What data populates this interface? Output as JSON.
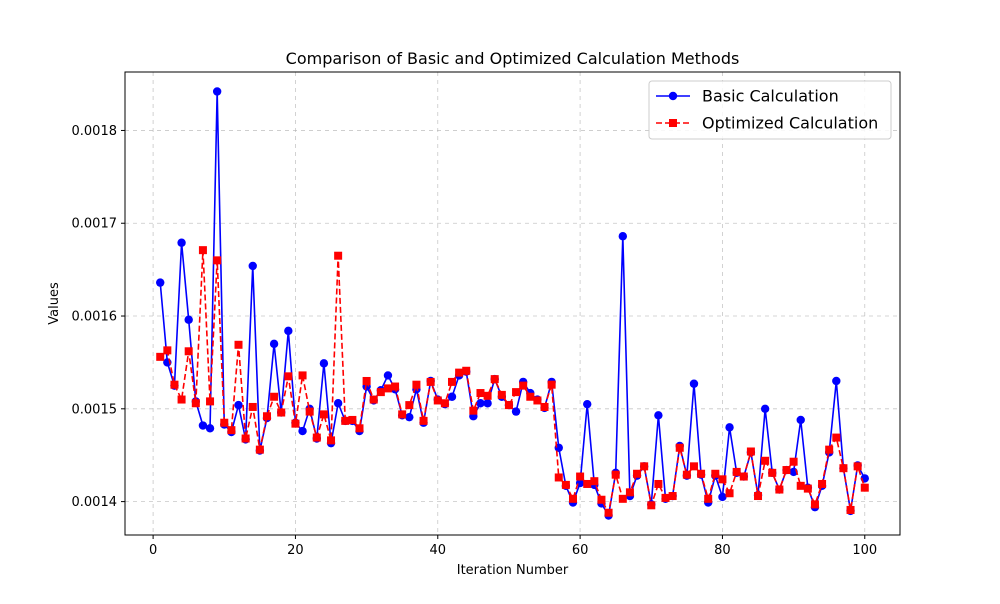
{
  "chart_data": {
    "type": "line",
    "title": "Comparison of Basic and Optimized Calculation Methods",
    "xlabel": "Iteration Number",
    "ylabel": "Values",
    "xlim": [
      -3.95,
      104.95
    ],
    "ylim": [
      0.001364,
      0.001863
    ],
    "xticks": [
      0,
      20,
      40,
      60,
      80,
      100
    ],
    "yticks": [
      0.0014,
      0.0015,
      0.0016,
      0.0017,
      0.0018
    ],
    "xtick_labels": [
      "0",
      "20",
      "40",
      "60",
      "80",
      "100"
    ],
    "ytick_labels": [
      "0.0014",
      "0.0015",
      "0.0016",
      "0.0017",
      "0.0018"
    ],
    "grid": true,
    "legend_position": "top-right",
    "x": [
      1,
      2,
      3,
      4,
      5,
      6,
      7,
      8,
      9,
      10,
      11,
      12,
      13,
      14,
      15,
      16,
      17,
      18,
      19,
      20,
      21,
      22,
      23,
      24,
      25,
      26,
      27,
      28,
      29,
      30,
      31,
      32,
      33,
      34,
      35,
      36,
      37,
      38,
      39,
      40,
      41,
      42,
      43,
      44,
      45,
      46,
      47,
      48,
      49,
      50,
      51,
      52,
      53,
      54,
      55,
      56,
      57,
      58,
      59,
      60,
      61,
      62,
      63,
      64,
      65,
      66,
      67,
      68,
      69,
      70,
      71,
      72,
      73,
      74,
      75,
      76,
      77,
      78,
      79,
      80,
      81,
      82,
      83,
      84,
      85,
      86,
      87,
      88,
      89,
      90,
      91,
      92,
      93,
      94,
      95,
      96,
      97,
      98,
      99,
      100
    ],
    "series": [
      {
        "name": "Basic Calculation",
        "color": "#0000ff",
        "linestyle": "solid",
        "marker": "circle",
        "values": [
          0.001636,
          0.00155,
          0.001525,
          0.001679,
          0.001596,
          0.001508,
          0.001482,
          0.001479,
          0.001842,
          0.001483,
          0.001475,
          0.001504,
          0.001467,
          0.001654,
          0.001455,
          0.00149,
          0.00157,
          0.001496,
          0.001584,
          0.001485,
          0.001476,
          0.0015,
          0.001468,
          0.001549,
          0.001463,
          0.001506,
          0.001487,
          0.001487,
          0.001476,
          0.001524,
          0.001509,
          0.00152,
          0.001536,
          0.001521,
          0.001493,
          0.001491,
          0.001521,
          0.001485,
          0.00153,
          0.00151,
          0.001505,
          0.001513,
          0.001536,
          0.00154,
          0.001492,
          0.001506,
          0.001506,
          0.001532,
          0.001513,
          0.001504,
          0.001497,
          0.001529,
          0.001517,
          0.00151,
          0.001501,
          0.001529,
          0.001458,
          0.001417,
          0.001399,
          0.00142,
          0.001505,
          0.001418,
          0.001398,
          0.001385,
          0.001431,
          0.001686,
          0.001406,
          0.001428,
          0.001438,
          0.001397,
          0.001493,
          0.001403,
          0.001406,
          0.00146,
          0.001428,
          0.001527,
          0.001429,
          0.001399,
          0.001428,
          0.001405,
          0.00148,
          0.001431,
          0.001427,
          0.001453,
          0.001407,
          0.0015,
          0.001431,
          0.001413,
          0.001434,
          0.001432,
          0.001488,
          0.001415,
          0.001394,
          0.001417,
          0.001453,
          0.00153,
          0.001436,
          0.00139,
          0.001439,
          0.001425
        ]
      },
      {
        "name": "Optimized Calculation",
        "color": "#ff0000",
        "linestyle": "dashed",
        "marker": "square",
        "values": [
          0.001556,
          0.001563,
          0.001526,
          0.00151,
          0.001562,
          0.001506,
          0.001671,
          0.001508,
          0.00166,
          0.001485,
          0.001477,
          0.001569,
          0.001468,
          0.001502,
          0.001456,
          0.001492,
          0.001513,
          0.001496,
          0.001535,
          0.001484,
          0.001536,
          0.001497,
          0.001469,
          0.001494,
          0.001466,
          0.001665,
          0.001487,
          0.001488,
          0.001479,
          0.00153,
          0.00151,
          0.001518,
          0.001522,
          0.001524,
          0.001494,
          0.001504,
          0.001526,
          0.001487,
          0.001529,
          0.001509,
          0.001506,
          0.001529,
          0.001539,
          0.001541,
          0.001498,
          0.001517,
          0.001514,
          0.001532,
          0.001515,
          0.001504,
          0.001518,
          0.001525,
          0.001513,
          0.001509,
          0.001502,
          0.001526,
          0.001426,
          0.001418,
          0.001403,
          0.001427,
          0.001419,
          0.001422,
          0.001402,
          0.001388,
          0.001429,
          0.001403,
          0.00141,
          0.00143,
          0.001438,
          0.001396,
          0.001419,
          0.001404,
          0.001406,
          0.001458,
          0.001429,
          0.001438,
          0.00143,
          0.001403,
          0.00143,
          0.001424,
          0.001409,
          0.001432,
          0.001427,
          0.001454,
          0.001406,
          0.001444,
          0.001431,
          0.001413,
          0.001434,
          0.001443,
          0.001417,
          0.001414,
          0.001397,
          0.001419,
          0.001456,
          0.001469,
          0.001436,
          0.001391,
          0.001438,
          0.001415
        ]
      }
    ]
  }
}
